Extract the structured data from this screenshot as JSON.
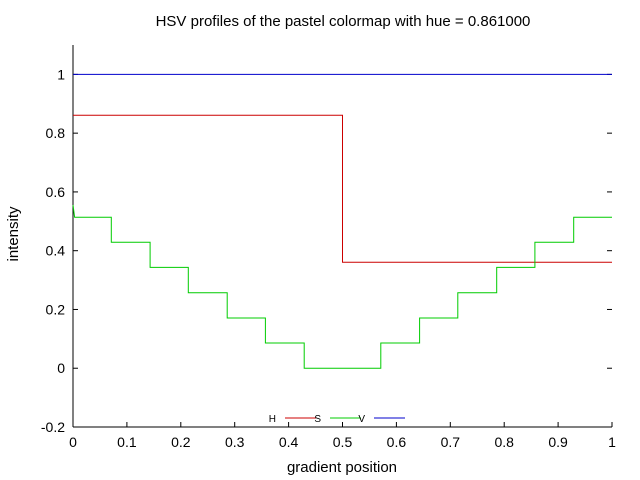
{
  "chart_data": {
    "type": "line",
    "title": "HSV profiles of the pastel colormap with hue = 0.861000",
    "xlabel": "gradient position",
    "ylabel": "intensity",
    "xlim": [
      0,
      1
    ],
    "ylim": [
      -0.2,
      1.1
    ],
    "xticks": [
      "0",
      "0.1",
      "0.2",
      "0.3",
      "0.4",
      "0.5",
      "0.6",
      "0.7",
      "0.8",
      "0.9",
      "1"
    ],
    "yticks": [
      "-0.2",
      "0",
      "0.2",
      "0.4",
      "0.6",
      "0.8",
      "1"
    ],
    "legend_position": "bottom-center",
    "series": [
      {
        "name": "H",
        "color": "#cc0000",
        "step": true,
        "points": [
          [
            0,
            0.861
          ],
          [
            0.5,
            0.861
          ],
          [
            0.5,
            0.361
          ],
          [
            1,
            0.361
          ]
        ]
      },
      {
        "name": "S",
        "color": "#00cc00",
        "step": true,
        "points": [
          [
            0,
            0.556
          ],
          [
            0.003,
            0.514
          ],
          [
            0.071,
            0.514
          ],
          [
            0.071,
            0.429
          ],
          [
            0.143,
            0.429
          ],
          [
            0.143,
            0.343
          ],
          [
            0.214,
            0.343
          ],
          [
            0.214,
            0.257
          ],
          [
            0.286,
            0.257
          ],
          [
            0.286,
            0.171
          ],
          [
            0.357,
            0.171
          ],
          [
            0.357,
            0.086
          ],
          [
            0.429,
            0.086
          ],
          [
            0.429,
            0.0
          ],
          [
            0.571,
            0.0
          ],
          [
            0.571,
            0.086
          ],
          [
            0.643,
            0.086
          ],
          [
            0.643,
            0.171
          ],
          [
            0.714,
            0.171
          ],
          [
            0.714,
            0.257
          ],
          [
            0.786,
            0.257
          ],
          [
            0.786,
            0.343
          ],
          [
            0.857,
            0.343
          ],
          [
            0.857,
            0.429
          ],
          [
            0.929,
            0.429
          ],
          [
            0.929,
            0.514
          ],
          [
            1,
            0.514
          ]
        ]
      },
      {
        "name": "V",
        "color": "#0000cc",
        "step": true,
        "points": [
          [
            0,
            1.0
          ],
          [
            1,
            1.0
          ]
        ]
      }
    ]
  }
}
